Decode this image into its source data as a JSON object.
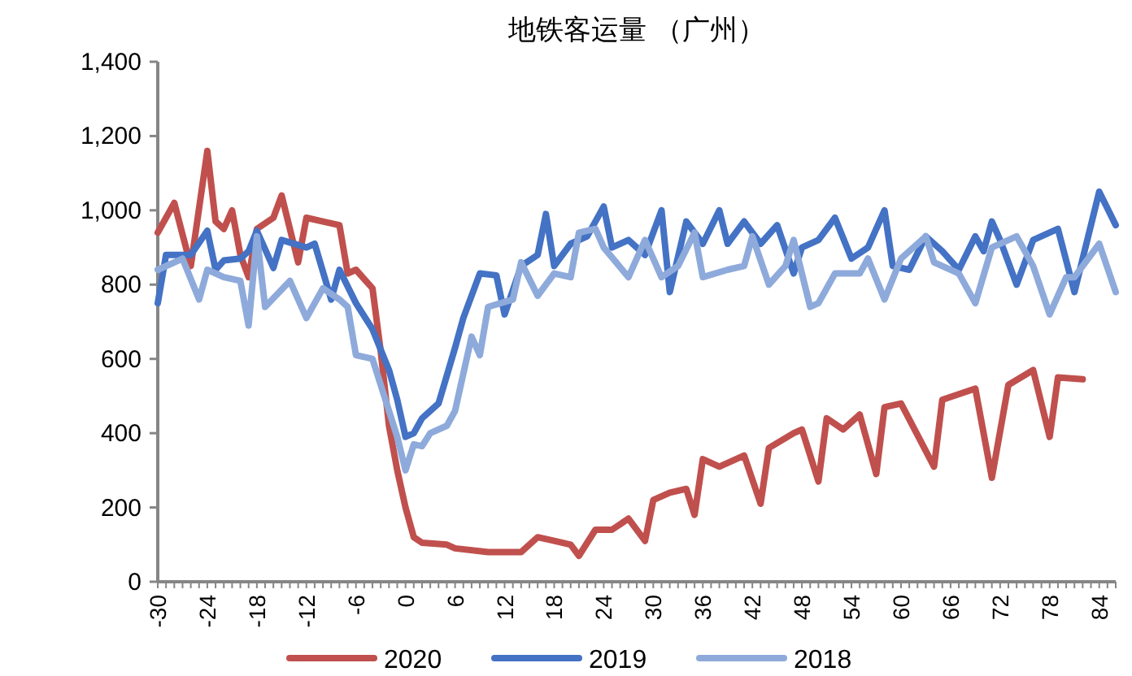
{
  "chart_data": {
    "type": "line",
    "title": "地铁客运量 （广州）",
    "xlim": [
      -30,
      86
    ],
    "xticks": [
      -30,
      -24,
      -18,
      -12,
      -6,
      0,
      6,
      12,
      18,
      24,
      30,
      36,
      42,
      48,
      54,
      60,
      66,
      72,
      78,
      84
    ],
    "ylim": [
      0,
      1400
    ],
    "yticks": [
      0,
      200,
      400,
      600,
      800,
      {
        "value": 1000,
        "label": "1,000"
      },
      {
        "value": 1200,
        "label": "1,200"
      },
      {
        "value": 1400,
        "label": "1,400"
      }
    ],
    "grid": false,
    "legend": "bottom",
    "marker": "none",
    "line_style": "solid",
    "series": [
      {
        "name": "2020",
        "color": "#c0504d",
        "x": [
          -30,
          -28,
          -26,
          -24,
          -23,
          -22,
          -21,
          -20,
          -19,
          -18,
          -16,
          -15,
          -14,
          -13,
          -12,
          -10,
          -8,
          -7,
          -6,
          -4,
          -3,
          -2,
          -1,
          0,
          1,
          2,
          5,
          6,
          10,
          14,
          16,
          18,
          20,
          21,
          23,
          25,
          27,
          29,
          30,
          32,
          34,
          35,
          36,
          38,
          41,
          43,
          44,
          47,
          48,
          50,
          51,
          53,
          55,
          57,
          58,
          60,
          64,
          65,
          69,
          71,
          73,
          76,
          78,
          79,
          82
        ],
        "values": [
          940,
          1020,
          850,
          1160,
          970,
          950,
          1000,
          880,
          820,
          950,
          980,
          1040,
          950,
          860,
          980,
          970,
          960,
          830,
          840,
          790,
          620,
          420,
          300,
          200,
          120,
          105,
          100,
          90,
          80,
          80,
          120,
          110,
          100,
          70,
          140,
          140,
          170,
          110,
          220,
          240,
          250,
          180,
          330,
          310,
          340,
          210,
          360,
          400,
          410,
          270,
          440,
          410,
          450,
          290,
          470,
          480,
          310,
          490,
          520,
          280,
          530,
          570,
          390,
          550,
          545
        ]
      },
      {
        "name": "2019",
        "color": "#4472c4",
        "x": [
          -30,
          -29,
          -26,
          -24,
          -23,
          -22,
          -20,
          -19,
          -18,
          -16,
          -15,
          -12,
          -11,
          -9,
          -8,
          -6,
          -4,
          -2,
          -1,
          0,
          1,
          2,
          4,
          6,
          7,
          9,
          11,
          12,
          14,
          16,
          17,
          18,
          20,
          22,
          24,
          25,
          27,
          29,
          31,
          32,
          34,
          36,
          38,
          39,
          41,
          43,
          45,
          47,
          48,
          50,
          52,
          54,
          56,
          58,
          59,
          61,
          63,
          65,
          67,
          69,
          70,
          71,
          72,
          74,
          76,
          79,
          81,
          82,
          84,
          86
        ],
        "values": [
          750,
          880,
          880,
          945,
          840,
          865,
          870,
          890,
          945,
          845,
          920,
          900,
          910,
          760,
          840,
          750,
          680,
          570,
          490,
          390,
          400,
          440,
          480,
          630,
          710,
          830,
          825,
          720,
          850,
          880,
          990,
          850,
          910,
          930,
          1010,
          900,
          920,
          880,
          1000,
          780,
          970,
          910,
          1000,
          910,
          970,
          910,
          960,
          830,
          900,
          920,
          980,
          870,
          900,
          1000,
          850,
          840,
          930,
          890,
          840,
          930,
          890,
          970,
          920,
          800,
          920,
          950,
          780,
          870,
          1050,
          960
        ]
      },
      {
        "name": "2018",
        "color": "#8eaadb",
        "x": [
          -30,
          -27,
          -25,
          -24,
          -22,
          -20,
          -19,
          -18,
          -17,
          -14,
          -12,
          -10,
          -8,
          -7,
          -6,
          -4,
          -3,
          -1,
          0,
          1,
          2,
          3,
          5,
          6,
          8,
          9,
          10,
          13,
          14,
          16,
          18,
          20,
          21,
          23,
          24,
          27,
          29,
          31,
          33,
          35,
          36,
          39,
          41,
          42,
          44,
          46,
          47,
          49,
          50,
          52,
          55,
          56,
          58,
          60,
          63,
          64,
          67,
          69,
          71,
          74,
          76,
          78,
          80,
          81,
          84,
          86
        ],
        "values": [
          840,
          870,
          760,
          840,
          820,
          810,
          690,
          930,
          740,
          810,
          710,
          790,
          760,
          740,
          610,
          600,
          530,
          390,
          300,
          370,
          365,
          400,
          420,
          460,
          660,
          610,
          740,
          760,
          860,
          770,
          830,
          820,
          940,
          950,
          900,
          820,
          920,
          820,
          850,
          940,
          820,
          840,
          850,
          930,
          800,
          850,
          920,
          740,
          750,
          830,
          830,
          870,
          760,
          870,
          930,
          860,
          830,
          750,
          900,
          930,
          850,
          720,
          820,
          820,
          910,
          780
        ]
      }
    ]
  }
}
